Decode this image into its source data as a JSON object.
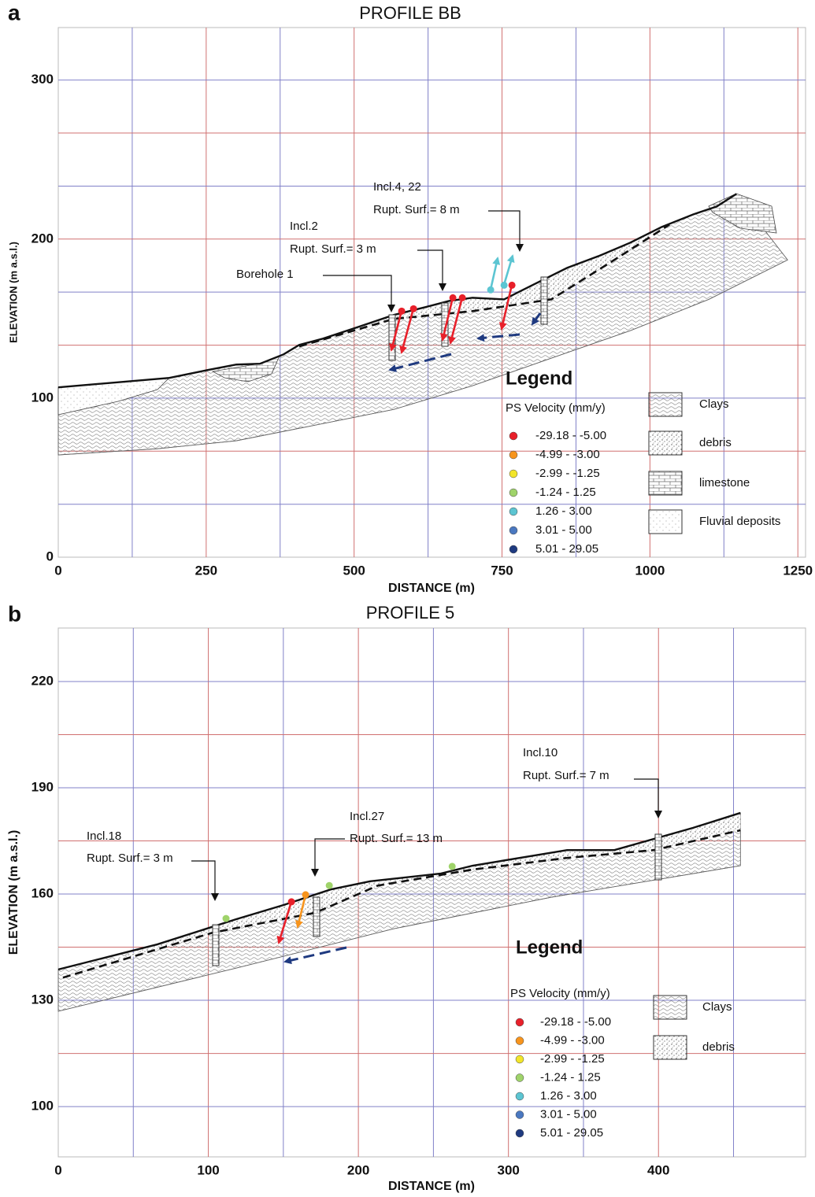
{
  "chart_data": [
    {
      "type": "profile",
      "panel": "a",
      "title": "PROFILE BB",
      "xlabel": "DISTANCE (m)",
      "ylabel": "ELEVATION (m a.s.l.)",
      "xlim": [
        0,
        1263
      ],
      "ylim": [
        0,
        333
      ],
      "xticks": [
        0,
        250,
        500,
        750,
        1000,
        1250
      ],
      "yticks": [
        0,
        100,
        200,
        300
      ],
      "xgrid": [
        125,
        250,
        375,
        500,
        625,
        750,
        875,
        1000,
        1125,
        1250
      ],
      "ygrid": [
        33.3,
        66.7,
        100,
        133.3,
        166.7,
        200,
        233.3,
        266.7,
        300
      ],
      "grid_colors": [
        "#8080c8",
        "#d07070"
      ],
      "surface": {
        "x": [
          0,
          187.7,
          251.6,
          300.9,
          340.8,
          380.7,
          407.3,
          447.3,
          507.2,
          567.1,
          620.3,
          660.3,
          700.2,
          753.5,
          780.1,
          820.0,
          860.0,
          913.2,
          966.5,
          1019.7,
          1073.0,
          1112.9,
          1146.2
        ],
        "y": [
          106.8,
          112.7,
          117.6,
          121.1,
          121.6,
          127.5,
          133.5,
          137.4,
          144.8,
          152.3,
          157.2,
          161.1,
          163.1,
          162.1,
          167.1,
          174.5,
          181.9,
          189.3,
          197.7,
          207.6,
          215.5,
          220.5,
          228.4
        ]
      },
      "base": {
        "x": [
          0,
          167.7,
          300.9,
          434.0,
          567.1,
          700.2,
          833.3,
          966.5,
          1099.6,
          1232.7
        ],
        "y": [
          64.3,
          68.2,
          73.2,
          83.0,
          92.9,
          107.8,
          125.1,
          142.4,
          162.1,
          186.9
        ]
      },
      "slip_surface": {
        "x": [
          407.3,
          567.1,
          700.2,
          833.3,
          939.8,
          1033.0
        ],
        "y": [
          132.5,
          149.8,
          154.7,
          162.1,
          186.9,
          209.1
        ]
      },
      "ps_points": [
        {
          "x": 580.4,
          "y": 154.7,
          "class": 0
        },
        {
          "x": 600.4,
          "y": 156.2,
          "class": 0
        },
        {
          "x": 666.9,
          "y": 163.1,
          "class": 0
        },
        {
          "x": 682.9,
          "y": 163.1,
          "class": 0
        },
        {
          "x": 766.8,
          "y": 171.0,
          "class": 0
        },
        {
          "x": 730.8,
          "y": 168.1,
          "class": 4
        },
        {
          "x": 753.5,
          "y": 171.0,
          "class": 4
        }
      ],
      "annotations": [
        {
          "label": "Incl.4, 22",
          "text": "Rupt. Surf.= 8 m"
        },
        {
          "label": "Incl.2",
          "text": "Rupt. Surf.= 3 m"
        },
        {
          "label": "Borehole 1"
        }
      ],
      "legend": {
        "title": "Legend",
        "subtitle": "PS Velocity (mm/y)",
        "classes": [
          {
            "label": "-29.18 - -5.00",
            "color": "#e8202a"
          },
          {
            "label": "-4.99 - -3.00",
            "color": "#f7941d"
          },
          {
            "label": "-2.99 - -1.25",
            "color": "#f2e52a"
          },
          {
            "label": "-1.24 - 1.25",
            "color": "#9fd36a"
          },
          {
            "label": "1.26 - 3.00",
            "color": "#5cc5d2"
          },
          {
            "label": "3.01 - 5.00",
            "color": "#4a78c0"
          },
          {
            "label": "5.01 - 29.05",
            "color": "#1f3a80"
          }
        ],
        "lithology": [
          "Clays",
          "debris",
          "limestone",
          "Fluvial deposits"
        ]
      }
    },
    {
      "type": "profile",
      "panel": "b",
      "title": "PROFILE 5",
      "xlabel": "DISTANCE (m)",
      "ylabel": "ELEVATION (m a.s.l.)",
      "xlim": [
        0,
        498
      ],
      "ylim": [
        85.8,
        235.1
      ],
      "xticks": [
        0,
        100,
        200,
        300,
        400
      ],
      "yticks": [
        100,
        130,
        160,
        190,
        220
      ],
      "xgrid": [
        50,
        100,
        150,
        200,
        250,
        300,
        350,
        400,
        450
      ],
      "ygrid": [
        100,
        115,
        130,
        145,
        160,
        175,
        190,
        205,
        220
      ],
      "grid_colors": [
        "#8080c8",
        "#d07070"
      ],
      "surface": {
        "x": [
          0,
          66.1,
          118.6,
          150.1,
          181.6,
          207.9,
          255.1,
          276.1,
          339.1,
          370.6,
          423.1,
          454.6
        ],
        "y": [
          138.7,
          145.8,
          152.9,
          156.9,
          161.3,
          163.6,
          165.8,
          168.0,
          172.4,
          172.4,
          178.7,
          182.9
        ]
      },
      "base": {
        "x": [
          0,
          118.6,
          223.6,
          328.6,
          454.6
        ],
        "y": [
          126.9,
          139.1,
          150.2,
          159.1,
          168.0
        ]
      },
      "slip_surface": {
        "x": [
          3.1,
          102.9,
          171.1,
          213.1,
          276.1,
          339.1,
          396.9,
          454.6
        ],
        "y": [
          136.4,
          149.1,
          154.7,
          162.4,
          166.9,
          170.2,
          172.4,
          178.0
        ]
      },
      "ps_points": [
        {
          "x": 111.8,
          "y": 153.1,
          "class": 3
        },
        {
          "x": 155.4,
          "y": 157.8,
          "class": 0
        },
        {
          "x": 164.8,
          "y": 159.8,
          "class": 1
        },
        {
          "x": 180.6,
          "y": 162.4,
          "class": 3
        },
        {
          "x": 262.5,
          "y": 167.8,
          "class": 3
        }
      ],
      "annotations": [
        {
          "label": "Incl.18",
          "text": "Rupt. Surf.= 3 m"
        },
        {
          "label": "Incl.27",
          "text": "Rupt. Surf.= 13 m"
        },
        {
          "label": "Incl.10",
          "text": "Rupt. Surf.= 7 m"
        }
      ],
      "legend": {
        "title": "Legend",
        "subtitle": "PS Velocity (mm/y)",
        "classes": [
          {
            "label": "-29.18 - -5.00",
            "color": "#e8202a"
          },
          {
            "label": "-4.99 - -3.00",
            "color": "#f7941d"
          },
          {
            "label": "-2.99 - -1.25",
            "color": "#f2e52a"
          },
          {
            "label": "-1.24 - 1.25",
            "color": "#9fd36a"
          },
          {
            "label": "1.26 - 3.00",
            "color": "#5cc5d2"
          },
          {
            "label": "3.01 - 5.00",
            "color": "#4a78c0"
          },
          {
            "label": "5.01 - 29.05",
            "color": "#1f3a80"
          }
        ],
        "lithology": [
          "Clays",
          "debris"
        ]
      }
    }
  ]
}
